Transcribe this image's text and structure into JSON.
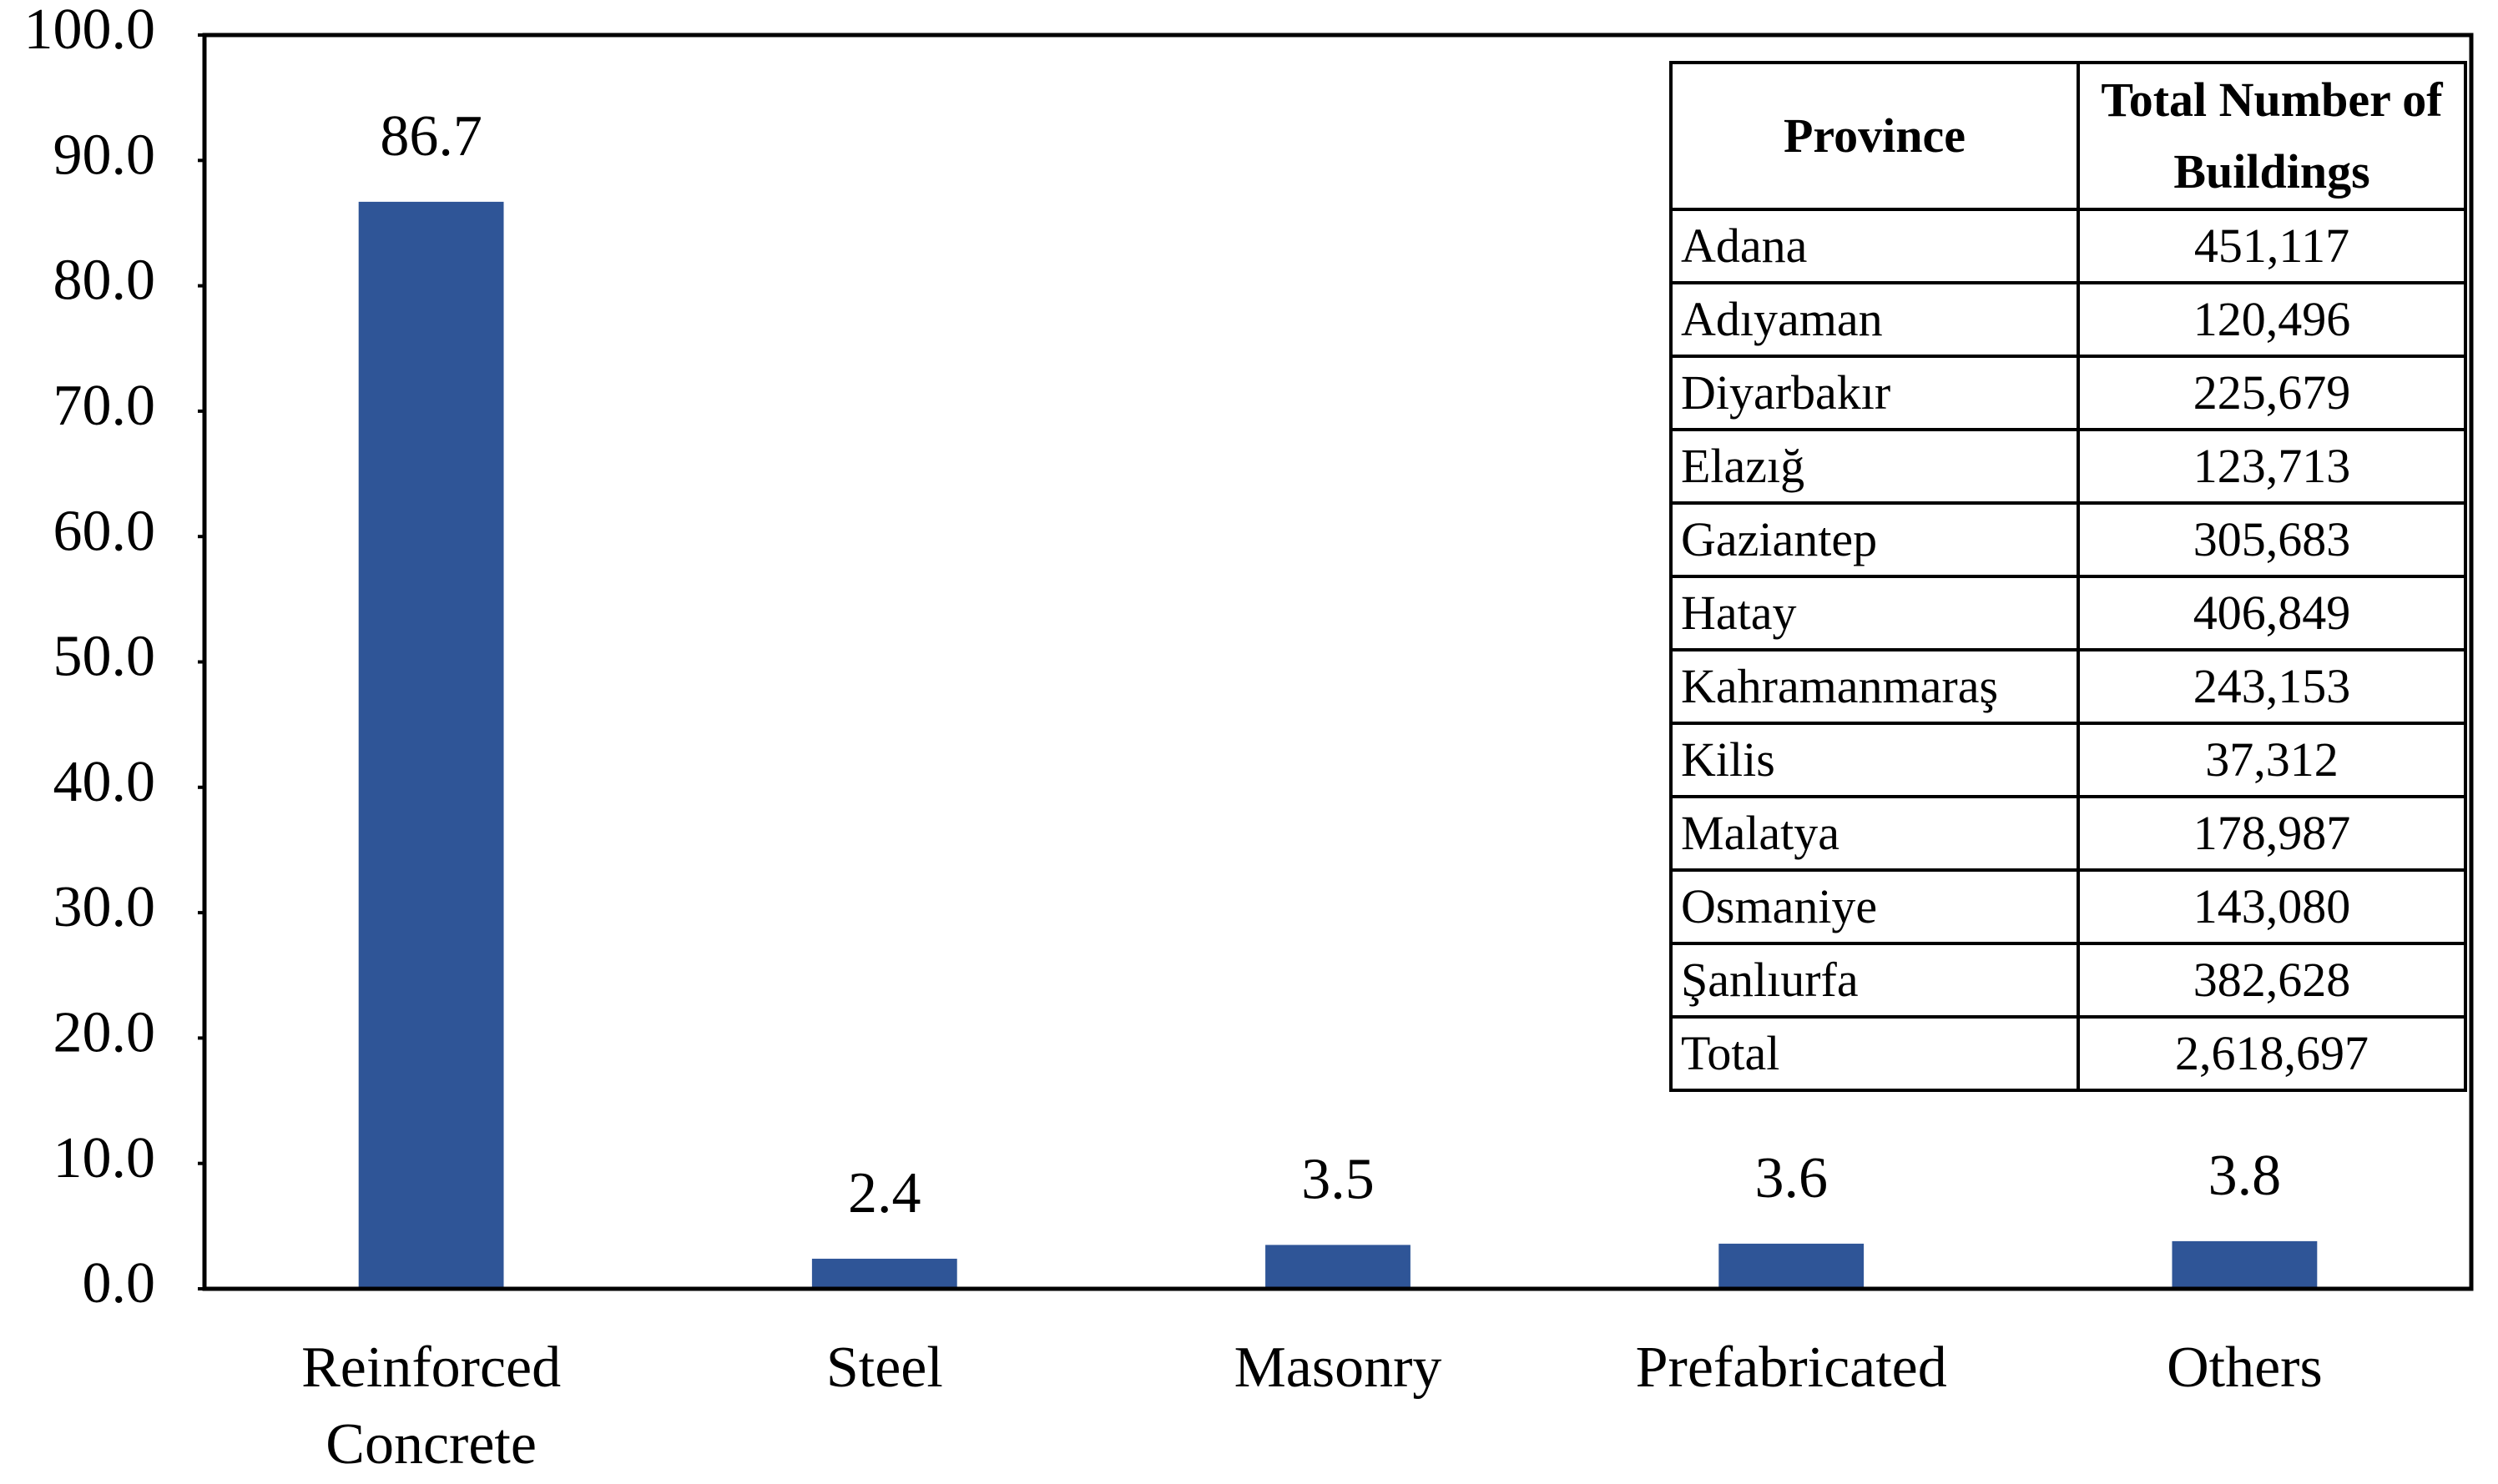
{
  "chart_data": {
    "type": "bar",
    "categories": [
      "Reinforced Concrete",
      "Steel",
      "Masonry",
      "Prefabricated",
      "Others"
    ],
    "values": [
      86.7,
      2.4,
      3.5,
      3.6,
      3.8
    ],
    "color": "#2f5597",
    "ylim": [
      0,
      100
    ],
    "yticks": [
      {
        "value": 0,
        "label": "0.0"
      },
      {
        "value": 10,
        "label": "10.0"
      },
      {
        "value": 20,
        "label": "20.0"
      },
      {
        "value": 30,
        "label": "30.0"
      },
      {
        "value": 40,
        "label": "40.0"
      },
      {
        "value": 50,
        "label": "50.0"
      },
      {
        "value": 60,
        "label": "60.0"
      },
      {
        "value": 70,
        "label": "70.0"
      },
      {
        "value": 80,
        "label": "80.0"
      },
      {
        "value": 90,
        "label": "90.0"
      },
      {
        "value": 100,
        "label": "100.0"
      }
    ],
    "grid": false,
    "table": {
      "header": [
        "Province",
        "Total Number of Buildings"
      ],
      "rows": [
        [
          "Adana",
          "451,117"
        ],
        [
          "Adıyaman",
          "120,496"
        ],
        [
          "Diyarbakır",
          "225,679"
        ],
        [
          "Elazığ",
          "123,713"
        ],
        [
          "Gaziantep",
          "305,683"
        ],
        [
          "Hatay",
          "406,849"
        ],
        [
          "Kahramanmaraş",
          "243,153"
        ],
        [
          "Kilis",
          "37,312"
        ],
        [
          "Malatya",
          "178,987"
        ],
        [
          "Osmaniye",
          "143,080"
        ],
        [
          "Şanlıurfa",
          "382,628"
        ],
        [
          "Total",
          "2,618,697"
        ]
      ]
    }
  }
}
